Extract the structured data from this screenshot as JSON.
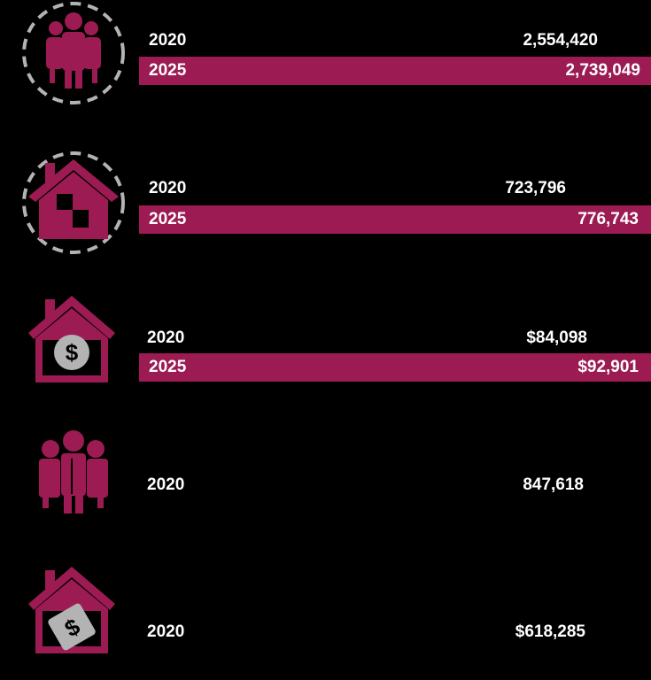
{
  "colors": {
    "background": "#000000",
    "accent": "#9b1b52",
    "icon_gray": "#b3b3b3"
  },
  "chart_data": {
    "type": "bar",
    "title": "",
    "xlabel": "",
    "ylabel": "",
    "categories": [
      "2020",
      "2025"
    ],
    "rows": [
      {
        "icon": "population-icon",
        "year_2020": "2020",
        "value_2020_label": "2,554,420",
        "value_2020": 2554420,
        "year_2025": "2025",
        "value_2025_label": "2,739,049",
        "value_2025": 2739049
      },
      {
        "icon": "households-icon",
        "year_2020": "2020",
        "value_2020_label": "723,796",
        "value_2020": 723796,
        "year_2025": "2025",
        "value_2025_label": "776,743",
        "value_2025": 776743
      },
      {
        "icon": "household-income-icon",
        "year_2020": "2020",
        "value_2020_label": "$84,098",
        "value_2020": 84098,
        "year_2025": "2025",
        "value_2025_label": "$92,901",
        "value_2025": 92901
      },
      {
        "icon": "family-icon",
        "year_2020": "2020",
        "value_2020_label": "847,618",
        "value_2020": 847618
      },
      {
        "icon": "home-value-icon",
        "year_2020": "2020",
        "value_2020_label": "$618,285",
        "value_2020": 618285
      }
    ]
  }
}
